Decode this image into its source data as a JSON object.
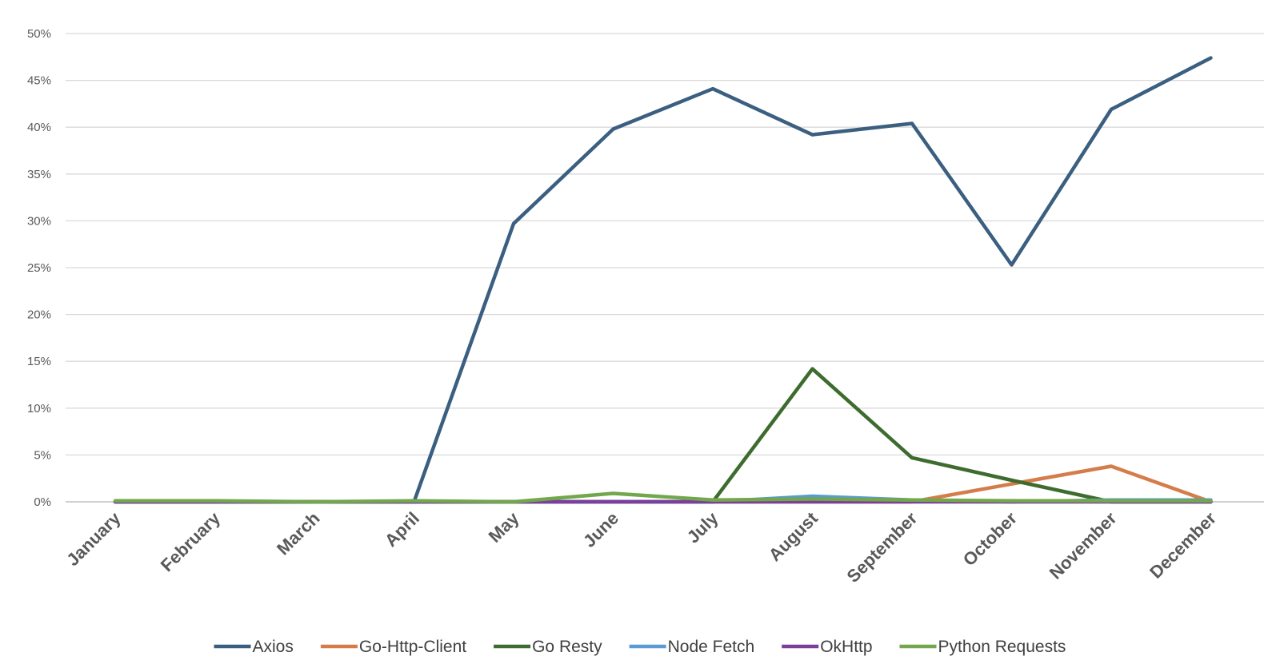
{
  "chart_data": {
    "type": "line",
    "title": "",
    "xlabel": "",
    "ylabel": "",
    "categories": [
      "January",
      "February",
      "March",
      "April",
      "May",
      "June",
      "July",
      "August",
      "September",
      "October",
      "November",
      "December"
    ],
    "y_ticks": [
      "0%",
      "5%",
      "10%",
      "15%",
      "20%",
      "25%",
      "30%",
      "35%",
      "40%",
      "45%",
      "50%"
    ],
    "ylim": [
      0,
      50
    ],
    "y_unit": "%",
    "grid": true,
    "legend_position": "bottom",
    "series": [
      {
        "name": "Axios",
        "color": "#3b5f80",
        "values": [
          0,
          0,
          0,
          0,
          29.7,
          39.8,
          44.1,
          39.2,
          40.4,
          25.3,
          41.9,
          47.4
        ]
      },
      {
        "name": "Go-Http-Client",
        "color": "#d47d4a",
        "values": [
          0,
          0,
          0,
          0,
          0,
          0,
          0,
          0,
          0,
          1.9,
          3.8,
          0
        ]
      },
      {
        "name": "Go Resty",
        "color": "#3e6b2e",
        "values": [
          0,
          0,
          0,
          0,
          0,
          0,
          0,
          14.2,
          4.7,
          2.3,
          0,
          0
        ]
      },
      {
        "name": "Node Fetch",
        "color": "#5a9bd4",
        "values": [
          0,
          0,
          0,
          0,
          0,
          0,
          0,
          0.6,
          0.2,
          0,
          0.2,
          0.2
        ]
      },
      {
        "name": "OkHttp",
        "color": "#7b3f9e",
        "values": [
          0,
          0,
          0,
          0,
          0,
          0,
          0,
          0,
          0,
          0,
          0,
          0
        ]
      },
      {
        "name": "Python Requests",
        "color": "#72a84b",
        "values": [
          0.1,
          0.1,
          0,
          0.1,
          0,
          0.9,
          0.2,
          0.3,
          0.2,
          0.1,
          0.1,
          0.1
        ]
      }
    ]
  }
}
